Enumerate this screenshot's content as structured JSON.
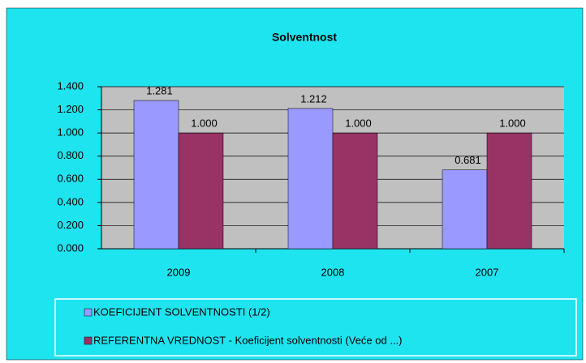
{
  "chart_data": {
    "type": "bar",
    "title": "Solventnost",
    "categories": [
      "2009",
      "2008",
      "2007"
    ],
    "series": [
      {
        "name": "KOEFICIJENT SOLVENTNOSTI (1/2)",
        "color": "#9999ff",
        "values": [
          1.281,
          1.212,
          0.681
        ]
      },
      {
        "name": "REFERENTNA VREDNOST - Koeficijent solventnosti (Veće od ...)",
        "color": "#993366",
        "values": [
          1,
          1,
          1
        ],
        "value_labels": [
          "1.000",
          "1.000",
          "1.000"
        ]
      }
    ],
    "ylim": [
      0,
      1.4
    ],
    "yticks": [
      {
        "value": 0,
        "label": "0.000"
      },
      {
        "value": 0.2,
        "label": "0.200"
      },
      {
        "value": 0.4,
        "label": "0.400"
      },
      {
        "value": 0.6,
        "label": "0.600"
      },
      {
        "value": 0.8,
        "label": "0.800"
      },
      {
        "value": 1,
        "label": "1.000"
      },
      {
        "value": 1.2,
        "label": "1.200"
      },
      {
        "value": 1.4,
        "label": "1.400"
      }
    ],
    "grid": true
  }
}
